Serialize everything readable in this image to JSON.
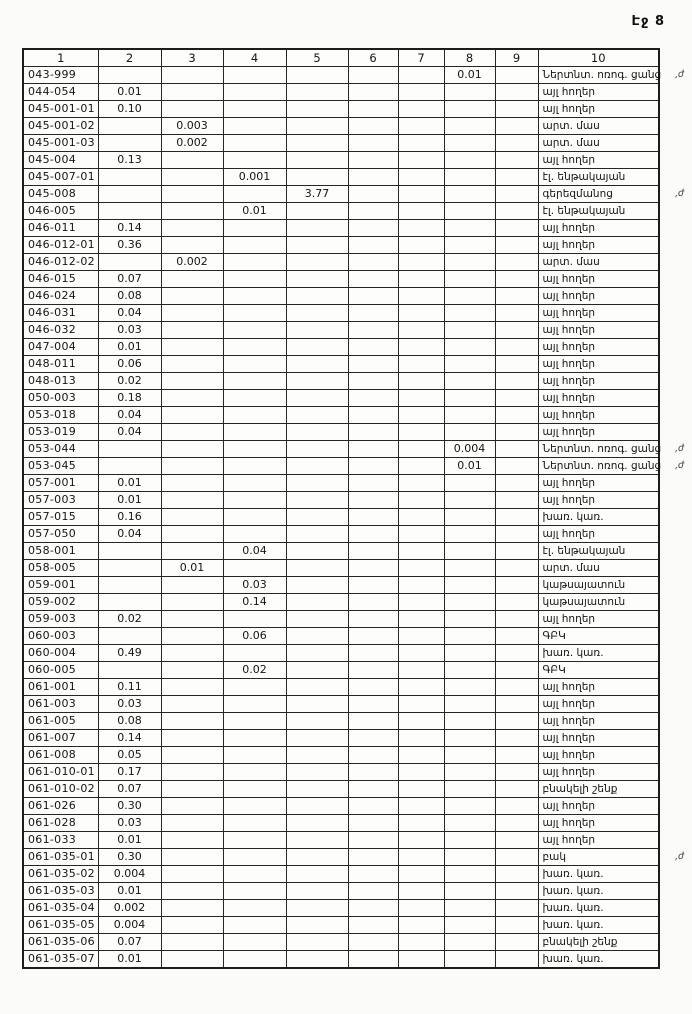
{
  "page": {
    "label": "Էջ 8"
  },
  "table": {
    "headers": [
      "1",
      "2",
      "3",
      "4",
      "5",
      "6",
      "7",
      "8",
      "9",
      "10"
    ],
    "rows": [
      {
        "code": "043-999",
        "cells": [
          "",
          "",
          "",
          "",
          "",
          "",
          "0.01",
          ""
        ],
        "label": "Ներտնտ. ոռոգ. ցանց",
        "note": ",ժ"
      },
      {
        "code": "044-054",
        "cells": [
          "0.01",
          "",
          "",
          "",
          "",
          "",
          "",
          ""
        ],
        "label": "այլ հողեր",
        "note": ""
      },
      {
        "code": "045-001-01",
        "cells": [
          "0.10",
          "",
          "",
          "",
          "",
          "",
          "",
          ""
        ],
        "label": "այլ հողեր",
        "note": ""
      },
      {
        "code": "045-001-02",
        "cells": [
          "",
          "0.003",
          "",
          "",
          "",
          "",
          "",
          ""
        ],
        "label": "արտ. մաս",
        "note": ""
      },
      {
        "code": "045-001-03",
        "cells": [
          "",
          "0.002",
          "",
          "",
          "",
          "",
          "",
          ""
        ],
        "label": "արտ. մաս",
        "note": ""
      },
      {
        "code": "045-004",
        "cells": [
          "0.13",
          "",
          "",
          "",
          "",
          "",
          "",
          ""
        ],
        "label": "այլ հողեր",
        "note": ""
      },
      {
        "code": "045-007-01",
        "cells": [
          "",
          "",
          "0.001",
          "",
          "",
          "",
          "",
          ""
        ],
        "label": "էլ. ենթակայան",
        "note": ""
      },
      {
        "code": "045-008",
        "cells": [
          "",
          "",
          "",
          "3.77",
          "",
          "",
          "",
          ""
        ],
        "label": "գերեզմանոց",
        "note": ",ժ"
      },
      {
        "code": "046-005",
        "cells": [
          "",
          "",
          "0.01",
          "",
          "",
          "",
          "",
          ""
        ],
        "label": "էլ. ենթակայան",
        "note": ""
      },
      {
        "code": "046-011",
        "cells": [
          "0.14",
          "",
          "",
          "",
          "",
          "",
          "",
          ""
        ],
        "label": "այլ հողեր",
        "note": ""
      },
      {
        "code": "046-012-01",
        "cells": [
          "0.36",
          "",
          "",
          "",
          "",
          "",
          "",
          ""
        ],
        "label": "այլ հողեր",
        "note": ""
      },
      {
        "code": "046-012-02",
        "cells": [
          "",
          "0.002",
          "",
          "",
          "",
          "",
          "",
          ""
        ],
        "label": "արտ. մաս",
        "note": ""
      },
      {
        "code": "046-015",
        "cells": [
          "0.07",
          "",
          "",
          "",
          "",
          "",
          "",
          ""
        ],
        "label": "այլ հողեր",
        "note": ""
      },
      {
        "code": "046-024",
        "cells": [
          "0.08",
          "",
          "",
          "",
          "",
          "",
          "",
          ""
        ],
        "label": "այլ հողեր",
        "note": ""
      },
      {
        "code": "046-031",
        "cells": [
          "0.04",
          "",
          "",
          "",
          "",
          "",
          "",
          ""
        ],
        "label": "այլ հողեր",
        "note": ""
      },
      {
        "code": "046-032",
        "cells": [
          "0.03",
          "",
          "",
          "",
          "",
          "",
          "",
          ""
        ],
        "label": "այլ հողեր",
        "note": ""
      },
      {
        "code": "047-004",
        "cells": [
          "0.01",
          "",
          "",
          "",
          "",
          "",
          "",
          ""
        ],
        "label": "այլ հողեր",
        "note": ""
      },
      {
        "code": "048-011",
        "cells": [
          "0.06",
          "",
          "",
          "",
          "",
          "",
          "",
          ""
        ],
        "label": "այլ հողեր",
        "note": ""
      },
      {
        "code": "048-013",
        "cells": [
          "0.02",
          "",
          "",
          "",
          "",
          "",
          "",
          ""
        ],
        "label": "այլ հողեր",
        "note": ""
      },
      {
        "code": "050-003",
        "cells": [
          "0.18",
          "",
          "",
          "",
          "",
          "",
          "",
          ""
        ],
        "label": "այլ հողեր",
        "note": ""
      },
      {
        "code": "053-018",
        "cells": [
          "0.04",
          "",
          "",
          "",
          "",
          "",
          "",
          ""
        ],
        "label": "այլ հողեր",
        "note": ""
      },
      {
        "code": "053-019",
        "cells": [
          "0.04",
          "",
          "",
          "",
          "",
          "",
          "",
          ""
        ],
        "label": "այլ հողեր",
        "note": ""
      },
      {
        "code": "053-044",
        "cells": [
          "",
          "",
          "",
          "",
          "",
          "",
          "0.004",
          ""
        ],
        "label": "Ներտնտ. ոռոգ. ցանց",
        "note": ",ժ"
      },
      {
        "code": "053-045",
        "cells": [
          "",
          "",
          "",
          "",
          "",
          "",
          "0.01",
          ""
        ],
        "label": "Ներտնտ. ոռոգ. ցանց",
        "note": ",ժ"
      },
      {
        "code": "057-001",
        "cells": [
          "0.01",
          "",
          "",
          "",
          "",
          "",
          "",
          ""
        ],
        "label": "այլ հողեր",
        "note": ""
      },
      {
        "code": "057-003",
        "cells": [
          "0.01",
          "",
          "",
          "",
          "",
          "",
          "",
          ""
        ],
        "label": "այլ հողեր",
        "note": ""
      },
      {
        "code": "057-015",
        "cells": [
          "0.16",
          "",
          "",
          "",
          "",
          "",
          "",
          ""
        ],
        "label": "խառ. կառ.",
        "note": ""
      },
      {
        "code": "057-050",
        "cells": [
          "0.04",
          "",
          "",
          "",
          "",
          "",
          "",
          ""
        ],
        "label": "այլ հողեր",
        "note": ""
      },
      {
        "code": "058-001",
        "cells": [
          "",
          "",
          "0.04",
          "",
          "",
          "",
          "",
          ""
        ],
        "label": "էլ. ենթակայան",
        "note": ""
      },
      {
        "code": "058-005",
        "cells": [
          "",
          "0.01",
          "",
          "",
          "",
          "",
          "",
          ""
        ],
        "label": "արտ. մաս",
        "note": ""
      },
      {
        "code": "059-001",
        "cells": [
          "",
          "",
          "0.03",
          "",
          "",
          "",
          "",
          ""
        ],
        "label": "կաթսայատուն",
        "note": ""
      },
      {
        "code": "059-002",
        "cells": [
          "",
          "",
          "0.14",
          "",
          "",
          "",
          "",
          ""
        ],
        "label": "կաթսայատուն",
        "note": ""
      },
      {
        "code": "059-003",
        "cells": [
          "0.02",
          "",
          "",
          "",
          "",
          "",
          "",
          ""
        ],
        "label": "այլ հողեր",
        "note": ""
      },
      {
        "code": "060-003",
        "cells": [
          "",
          "",
          "0.06",
          "",
          "",
          "",
          "",
          ""
        ],
        "label": "ԳԲԿ",
        "note": ""
      },
      {
        "code": "060-004",
        "cells": [
          "0.49",
          "",
          "",
          "",
          "",
          "",
          "",
          ""
        ],
        "label": "խառ. կառ.",
        "note": ""
      },
      {
        "code": "060-005",
        "cells": [
          "",
          "",
          "0.02",
          "",
          "",
          "",
          "",
          ""
        ],
        "label": "ԳԲԿ",
        "note": ""
      },
      {
        "code": "061-001",
        "cells": [
          "0.11",
          "",
          "",
          "",
          "",
          "",
          "",
          ""
        ],
        "label": "այլ հողեր",
        "note": ""
      },
      {
        "code": "061-003",
        "cells": [
          "0.03",
          "",
          "",
          "",
          "",
          "",
          "",
          ""
        ],
        "label": "այլ հողեր",
        "note": ""
      },
      {
        "code": "061-005",
        "cells": [
          "0.08",
          "",
          "",
          "",
          "",
          "",
          "",
          ""
        ],
        "label": "այլ հողեր",
        "note": ""
      },
      {
        "code": "061-007",
        "cells": [
          "0.14",
          "",
          "",
          "",
          "",
          "",
          "",
          ""
        ],
        "label": "այլ հողեր",
        "note": ""
      },
      {
        "code": "061-008",
        "cells": [
          "0.05",
          "",
          "",
          "",
          "",
          "",
          "",
          ""
        ],
        "label": "այլ հողեր",
        "note": ""
      },
      {
        "code": "061-010-01",
        "cells": [
          "0.17",
          "",
          "",
          "",
          "",
          "",
          "",
          ""
        ],
        "label": "այլ հողեր",
        "note": ""
      },
      {
        "code": "061-010-02",
        "cells": [
          "0.07",
          "",
          "",
          "",
          "",
          "",
          "",
          ""
        ],
        "label": "բնակելի շենք",
        "note": ""
      },
      {
        "code": "061-026",
        "cells": [
          "0.30",
          "",
          "",
          "",
          "",
          "",
          "",
          ""
        ],
        "label": "այլ հողեր",
        "note": ""
      },
      {
        "code": "061-028",
        "cells": [
          "0.03",
          "",
          "",
          "",
          "",
          "",
          "",
          ""
        ],
        "label": "այլ հողեր",
        "note": ""
      },
      {
        "code": "061-033",
        "cells": [
          "0.01",
          "",
          "",
          "",
          "",
          "",
          "",
          ""
        ],
        "label": "այլ հողեր",
        "note": ""
      },
      {
        "code": "061-035-01",
        "cells": [
          "0.30",
          "",
          "",
          "",
          "",
          "",
          "",
          ""
        ],
        "label": "բակ",
        "note": ",ժ"
      },
      {
        "code": "061-035-02",
        "cells": [
          "0.004",
          "",
          "",
          "",
          "",
          "",
          "",
          ""
        ],
        "label": "խառ. կառ.",
        "note": ""
      },
      {
        "code": "061-035-03",
        "cells": [
          "0.01",
          "",
          "",
          "",
          "",
          "",
          "",
          ""
        ],
        "label": "խառ. կառ.",
        "note": ""
      },
      {
        "code": "061-035-04",
        "cells": [
          "0.002",
          "",
          "",
          "",
          "",
          "",
          "",
          ""
        ],
        "label": "խառ. կառ.",
        "note": ""
      },
      {
        "code": "061-035-05",
        "cells": [
          "0.004",
          "",
          "",
          "",
          "",
          "",
          "",
          ""
        ],
        "label": "խառ. կառ.",
        "note": ""
      },
      {
        "code": "061-035-06",
        "cells": [
          "0.07",
          "",
          "",
          "",
          "",
          "",
          "",
          ""
        ],
        "label": "բնակելի շենք",
        "note": ""
      },
      {
        "code": "061-035-07",
        "cells": [
          "0.01",
          "",
          "",
          "",
          "",
          "",
          "",
          ""
        ],
        "label": "խառ. կառ.",
        "note": ""
      }
    ]
  }
}
